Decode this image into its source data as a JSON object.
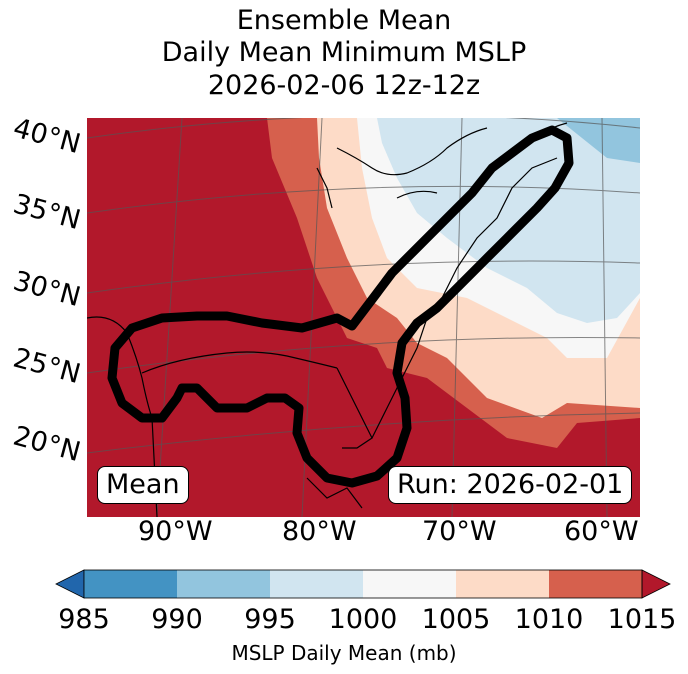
{
  "title": {
    "line1": "Ensemble Mean",
    "line2": "Daily Mean Minimum MSLP",
    "line3": "2026-02-06 12z-12z"
  },
  "map": {
    "lat_labels": [
      "40°N",
      "35°N",
      "30°N",
      "25°N",
      "20°N"
    ],
    "lon_labels": [
      "90°W",
      "80°W",
      "70°W",
      "60°W"
    ],
    "mean_label": "Mean",
    "run_label": "Run: 2026-02-01"
  },
  "colorbar": {
    "label": "MSLP Daily Mean (mb)",
    "ticks": [
      "985",
      "990",
      "995",
      "1000",
      "1005",
      "1010",
      "1015"
    ],
    "colors": [
      "#2166ac",
      "#4393c3",
      "#92c5de",
      "#d1e5f0",
      "#f7f7f7",
      "#fddbc7",
      "#d6604d",
      "#b2182b"
    ]
  }
}
